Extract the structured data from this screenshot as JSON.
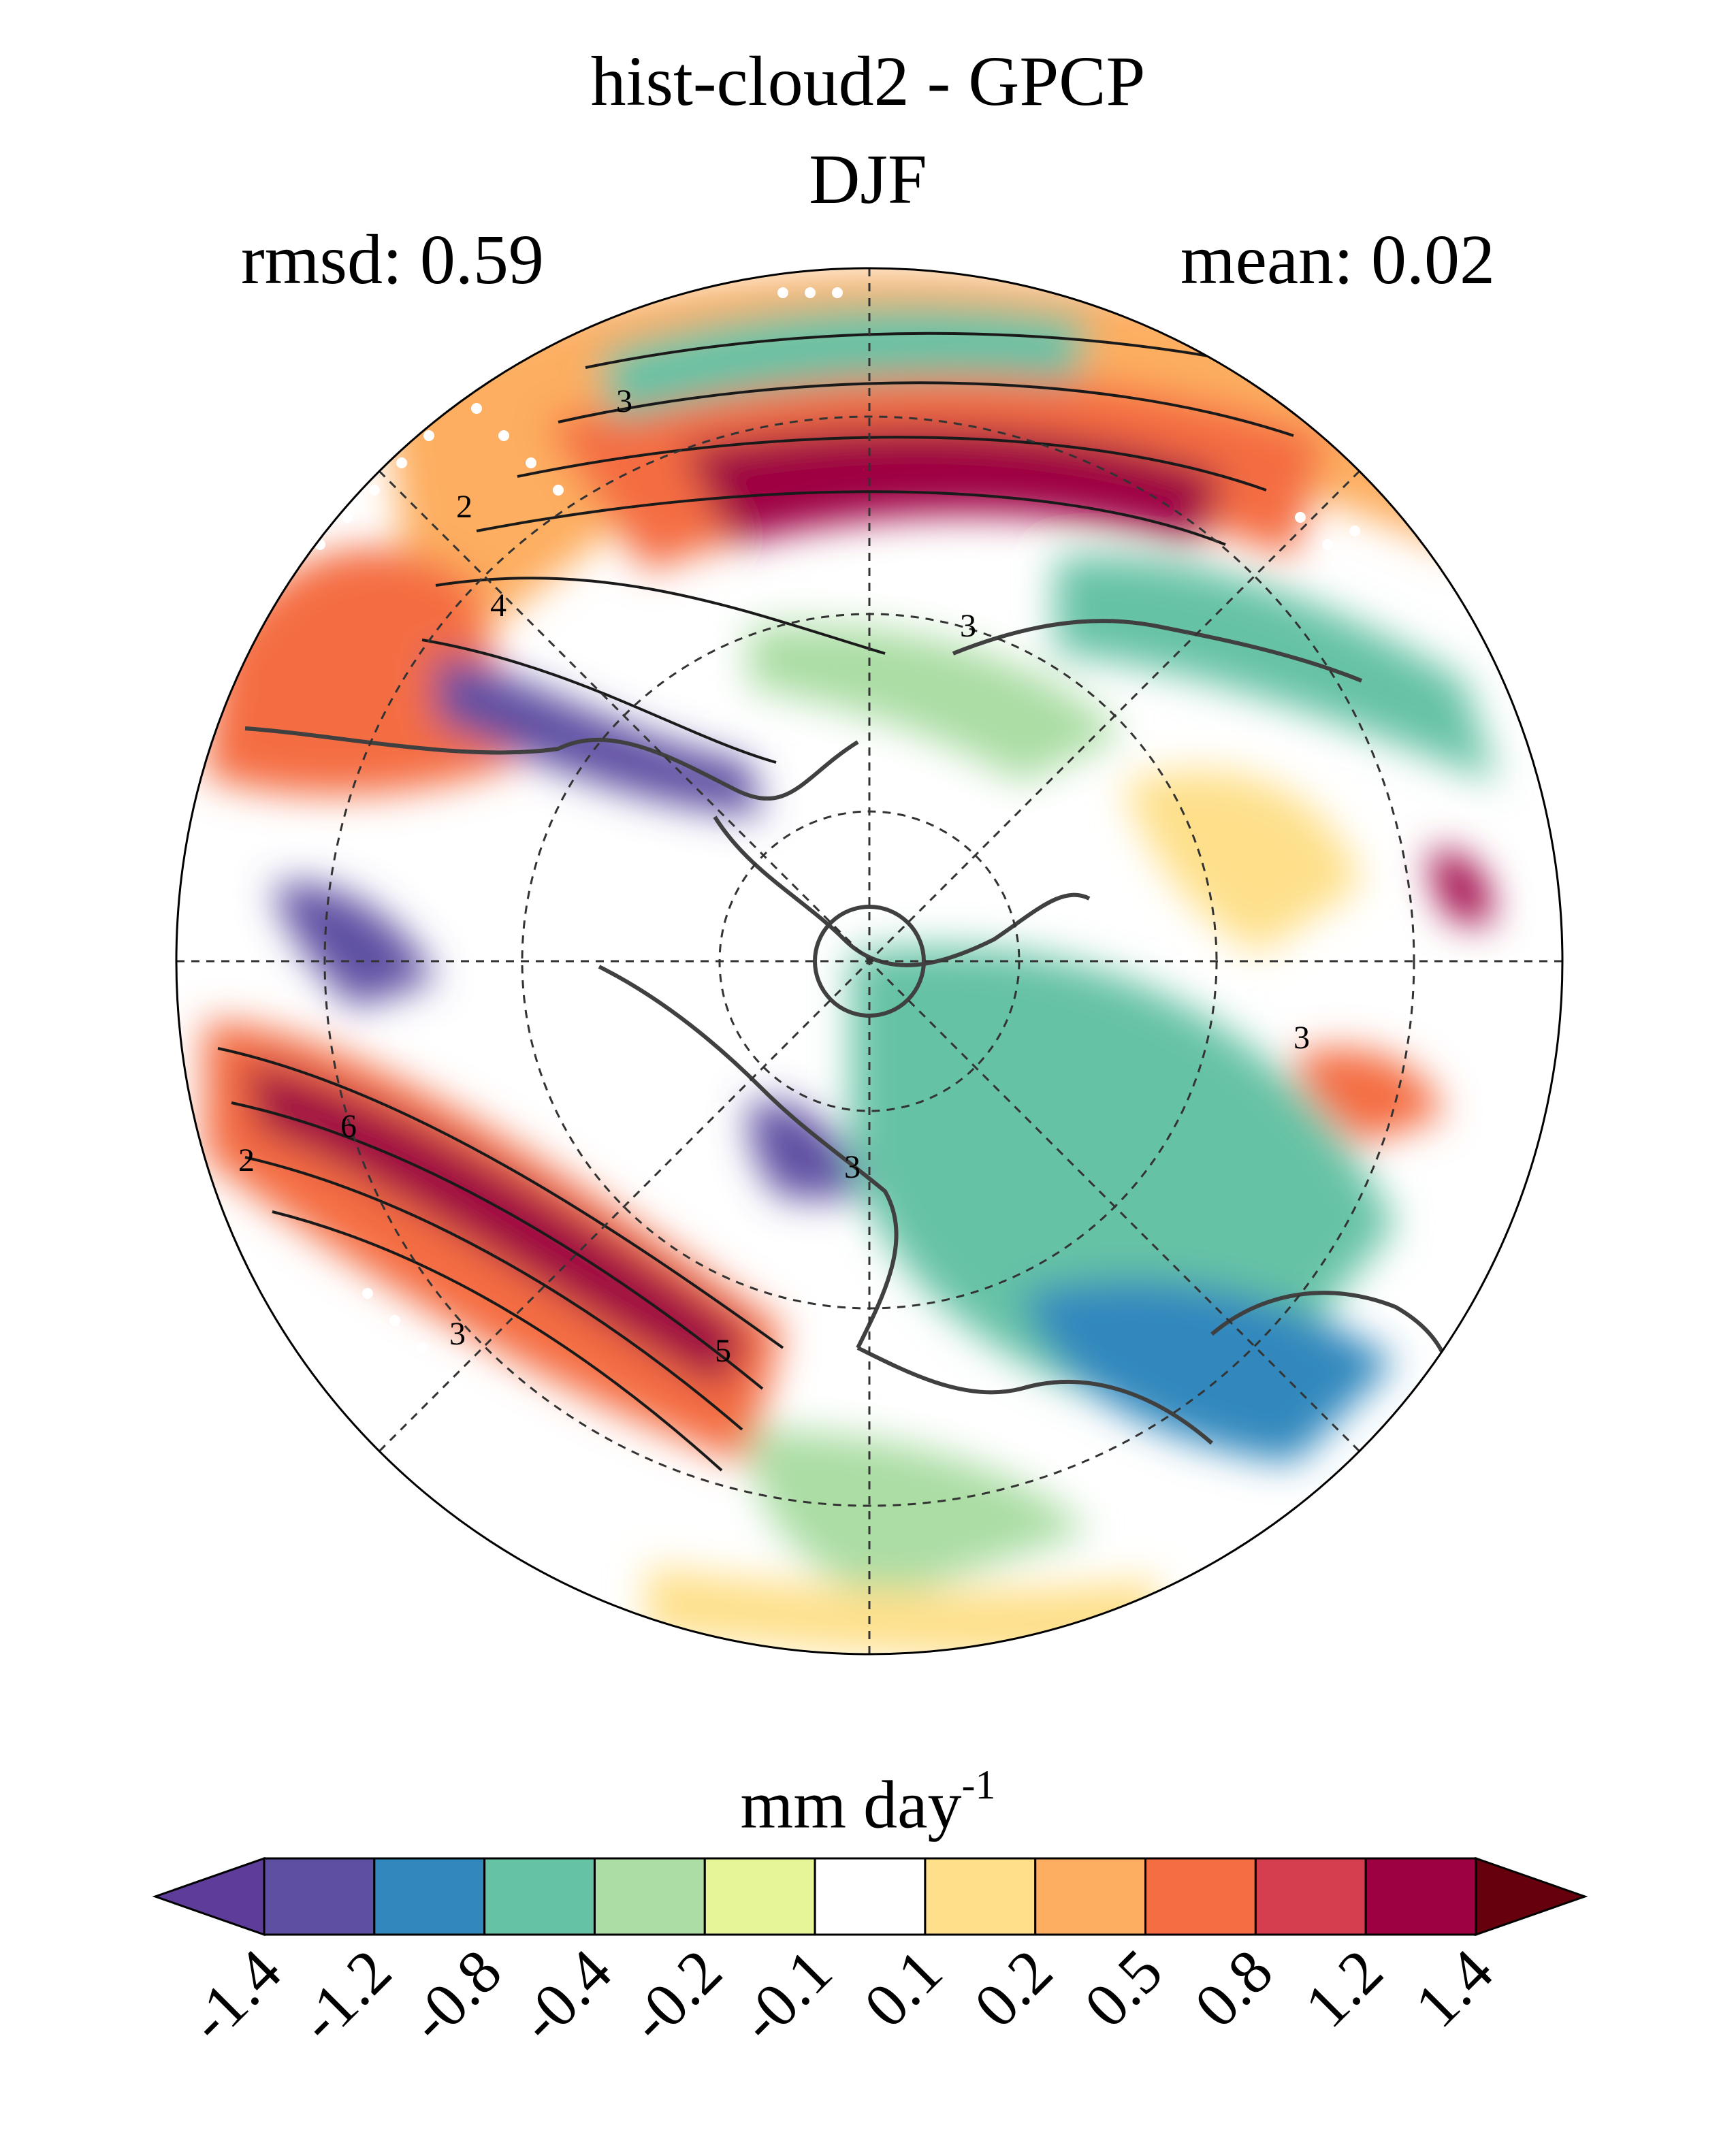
{
  "header": {
    "title_line1": "hist-cloud2 - GPCP",
    "title_line2": "DJF",
    "rmsd_label": "rmsd: 0.59",
    "mean_label": "mean: 0.02"
  },
  "map": {
    "projection": "north-polar-stereographic",
    "contour_labels": [
      "3",
      "2",
      "4",
      "3",
      "3",
      "6",
      "2",
      "3",
      "5",
      "3"
    ],
    "land_outline_color": "#404040",
    "contour_color": "#1a1a1a",
    "stipple_color": "#ffffff"
  },
  "colorbar": {
    "units_main": "mm day",
    "units_exp": "-1",
    "ticks": [
      "-1.4",
      "-1.2",
      "-0.8",
      "-0.4",
      "-0.2",
      "-0.1",
      "0.1",
      "0.2",
      "0.5",
      "0.8",
      "1.2",
      "1.4"
    ],
    "colors": [
      "#5e3c99",
      "#5e4fa2",
      "#3288bd",
      "#66c2a5",
      "#abdda4",
      "#e6f598",
      "#ffffff",
      "#fee08b",
      "#fdae61",
      "#f46d43",
      "#d53e4f",
      "#9e0142",
      "#67000d"
    ],
    "extend": "both"
  }
}
